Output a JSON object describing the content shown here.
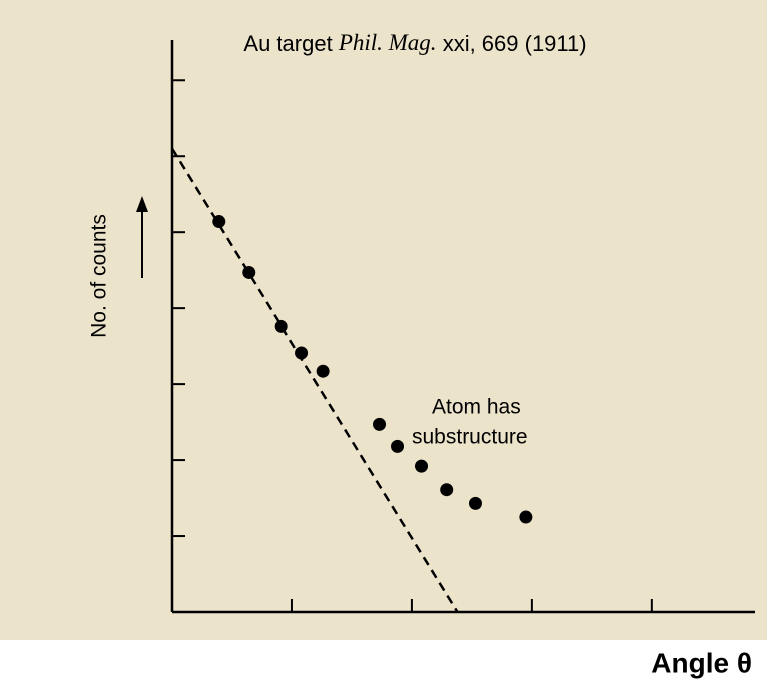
{
  "chart_data": {
    "type": "scatter",
    "title": [
      "Au target",
      "Phil. Mag.",
      "xxi, 669 (1911)"
    ],
    "y_label": "No. of counts",
    "x_label": "Angle θ",
    "annotation": [
      "Atom has",
      "substructure"
    ],
    "x": [
      0.39,
      0.64,
      0.91,
      1.08,
      1.26,
      1.73,
      1.88,
      2.08,
      2.29,
      2.53,
      2.95
    ],
    "values": [
      5.14,
      4.47,
      3.76,
      3.41,
      3.17,
      2.47,
      2.18,
      1.92,
      1.61,
      1.43,
      1.25
    ],
    "color": "#000000",
    "trend_line": {
      "x": [
        0,
        2.38
      ],
      "y": [
        6.1,
        0
      ],
      "dashed": true,
      "color": "#000000"
    },
    "xlim": [
      0,
      4.86
    ],
    "ylim": [
      0,
      7.53
    ],
    "xticks": [
      1,
      2,
      3,
      4
    ],
    "yticks": [
      1,
      2,
      3,
      4,
      5,
      6,
      7
    ],
    "grid": false
  }
}
